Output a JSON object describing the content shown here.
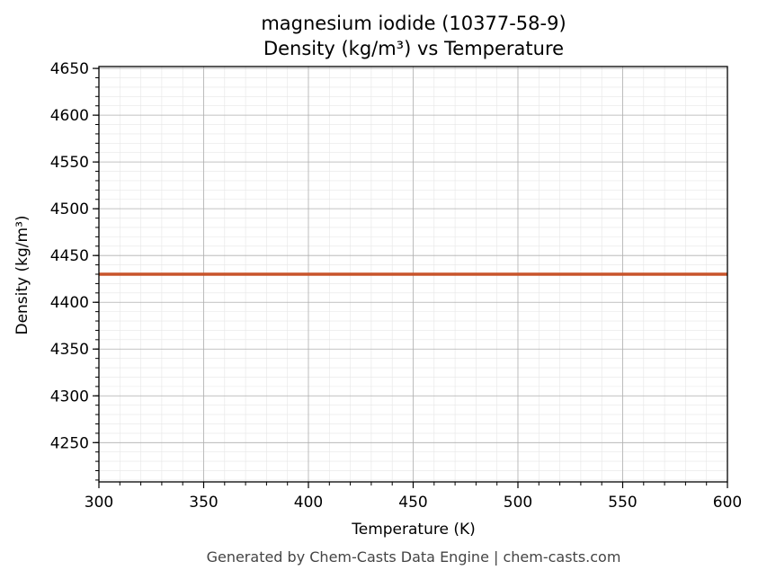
{
  "chart_data": {
    "type": "line",
    "title": "magnesium iodide (10377-58-9)",
    "subtitle": "Density (kg/m³) vs Temperature",
    "xlabel": "Temperature (K)",
    "ylabel": "Density (kg/m³)",
    "xlim": [
      300,
      600
    ],
    "ylim": [
      4208,
      4652
    ],
    "x_ticks": [
      300,
      350,
      400,
      450,
      500,
      550,
      600
    ],
    "y_ticks": [
      4250,
      4300,
      4350,
      4400,
      4450,
      4500,
      4550,
      4600,
      4650
    ],
    "grid": true,
    "series": [
      {
        "color": "#c8542a",
        "x": [
          300,
          600
        ],
        "y": [
          4430,
          4430
        ]
      }
    ]
  },
  "footer": "Generated by Chem-Casts Data Engine | chem-casts.com"
}
